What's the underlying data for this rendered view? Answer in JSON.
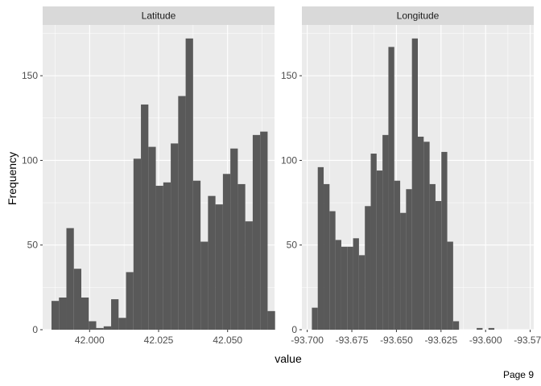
{
  "page": {
    "footer": "Page 9"
  },
  "chart_data": {
    "type": "bar",
    "colors": {
      "bar": "#595959",
      "panel": "#ebebeb",
      "grid": "#ffffff",
      "strip": "#d9d9d9"
    },
    "xlabel": "value",
    "ylabel": "Frequency",
    "ylim": [
      0,
      180
    ],
    "y_ticks": [
      0,
      50,
      100,
      150
    ],
    "grid": true,
    "panels": [
      {
        "name": "Latitude",
        "xlim": [
          41.983,
          42.067
        ],
        "x_ticks": [
          42.0,
          42.025,
          42.05
        ],
        "x_tick_labels": [
          "42.000",
          "42.025",
          "42.050"
        ],
        "bins": {
          "start": 41.9862,
          "width": 0.0027,
          "counts": [
            17,
            19,
            60,
            36,
            19,
            5,
            1,
            2,
            18,
            7,
            34,
            101,
            133,
            108,
            85,
            87,
            110,
            138,
            172,
            88,
            52,
            79,
            74,
            92,
            107,
            86,
            64,
            115,
            117,
            11
          ]
        }
      },
      {
        "name": "Longitude",
        "xlim": [
          -93.703,
          -93.573
        ],
        "x_ticks": [
          -93.7,
          -93.675,
          -93.65,
          -93.625,
          -93.6,
          -93.575
        ],
        "x_tick_labels": [
          "-93.700",
          "-93.675",
          "-93.650",
          "-93.625",
          "-93.600",
          "-93.575"
        ],
        "bins": {
          "start": -93.6974,
          "width": 0.0033,
          "counts": [
            13,
            96,
            86,
            70,
            53,
            49,
            49,
            54,
            44,
            73,
            104,
            94,
            115,
            167,
            88,
            69,
            83,
            172,
            114,
            111,
            86,
            76,
            105,
            52,
            5,
            0,
            0,
            0,
            1,
            0,
            1
          ]
        }
      }
    ]
  }
}
